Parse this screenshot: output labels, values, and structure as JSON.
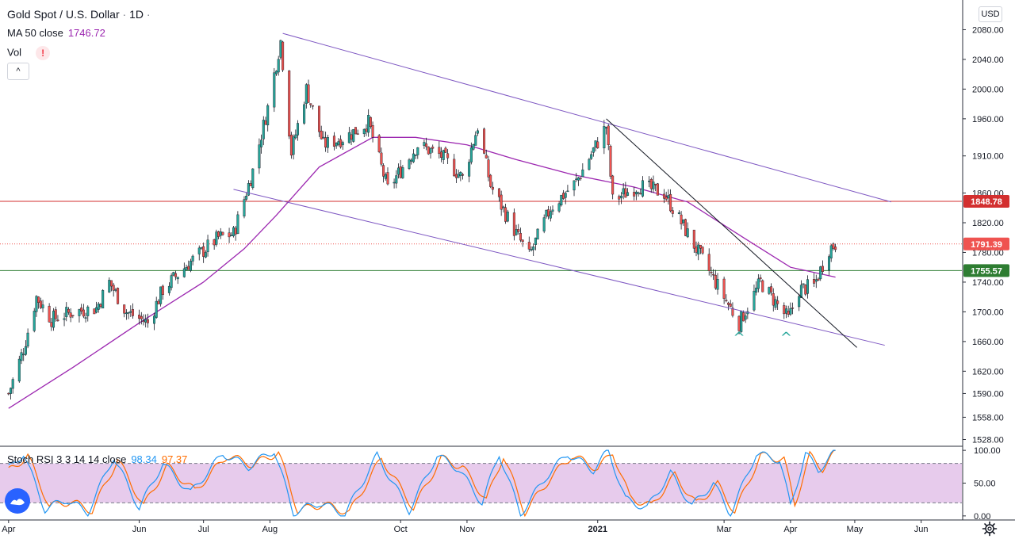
{
  "header": {
    "symbol_title": "Gold Spot / U.S. Dollar",
    "interval": "1D",
    "ma_label": "MA 50 close",
    "ma_value": "1746.72",
    "vol_label": "Vol",
    "warning_symbol": "!",
    "collapse_symbol": "^",
    "currency": "USD"
  },
  "stoch": {
    "label": "Stoch RSI 3 3 14 14 close",
    "k_value": "98.34",
    "d_value": "97.37"
  },
  "colors": {
    "up": "#26a69a",
    "down": "#ef5350",
    "ma": "#9c27b0",
    "channel": "#7e57c2",
    "k_line": "#2196f3",
    "d_line": "#ff6d00",
    "stoch_band": "#e1bee7",
    "resistance": "#d32f2f",
    "support": "#2e7d32",
    "price_dotted": "#ef5350"
  },
  "chart_data": {
    "type": "candlestick",
    "ylim": [
      1520,
      2120
    ],
    "y_ticks": [
      "2080.00",
      "2040.00",
      "2000.00",
      "1960.00",
      "1910.00",
      "1860.00",
      "1820.00",
      "1780.00",
      "1740.00",
      "1700.00",
      "1660.00",
      "1620.00",
      "1590.00",
      "1558.00",
      "1528.00"
    ],
    "y_ticks_num": [
      2080,
      2040,
      2000,
      1960,
      1910,
      1860,
      1820,
      1780,
      1740,
      1700,
      1660,
      1620,
      1590,
      1558,
      1528
    ],
    "x_range": [
      "2020-03-28",
      "2021-06-20"
    ],
    "x_labels": [
      {
        "label": "Apr",
        "date": "2020-04-01"
      },
      {
        "label": "Jun",
        "date": "2020-06-01"
      },
      {
        "label": "Jul",
        "date": "2020-07-01"
      },
      {
        "label": "Aug",
        "date": "2020-08-01"
      },
      {
        "label": "Oct",
        "date": "2020-10-01"
      },
      {
        "label": "Nov",
        "date": "2020-11-01"
      },
      {
        "label": "2021",
        "date": "2021-01-01"
      },
      {
        "label": "Mar",
        "date": "2021-03-01"
      },
      {
        "label": "Apr",
        "date": "2021-04-01"
      },
      {
        "label": "May",
        "date": "2021-05-01"
      },
      {
        "label": "Jun",
        "date": "2021-06-01"
      }
    ],
    "close_path": [
      [
        "2020-04-01",
        1590
      ],
      [
        "2020-04-08",
        1650
      ],
      [
        "2020-04-14",
        1720
      ],
      [
        "2020-04-21",
        1690
      ],
      [
        "2020-05-01",
        1700
      ],
      [
        "2020-05-12",
        1705
      ],
      [
        "2020-05-18",
        1740
      ],
      [
        "2020-05-26",
        1700
      ],
      [
        "2020-06-05",
        1685
      ],
      [
        "2020-06-12",
        1730
      ],
      [
        "2020-06-24",
        1765
      ],
      [
        "2020-07-08",
        1800
      ],
      [
        "2020-07-15",
        1805
      ],
      [
        "2020-07-24",
        1890
      ],
      [
        "2020-07-31",
        1975
      ],
      [
        "2020-08-06",
        2065
      ],
      [
        "2020-08-11",
        1915
      ],
      [
        "2020-08-18",
        2000
      ],
      [
        "2020-08-26",
        1925
      ],
      [
        "2020-09-05",
        1935
      ],
      [
        "2020-09-16",
        1955
      ],
      [
        "2020-09-25",
        1865
      ],
      [
        "2020-10-09",
        1925
      ],
      [
        "2020-10-20",
        1910
      ],
      [
        "2020-10-30",
        1880
      ],
      [
        "2020-11-06",
        1950
      ],
      [
        "2020-11-12",
        1870
      ],
      [
        "2020-11-24",
        1805
      ],
      [
        "2020-11-30",
        1775
      ],
      [
        "2020-12-10",
        1840
      ],
      [
        "2020-12-22",
        1875
      ],
      [
        "2021-01-05",
        1950
      ],
      [
        "2021-01-08",
        1850
      ],
      [
        "2021-01-20",
        1870
      ],
      [
        "2021-02-01",
        1860
      ],
      [
        "2021-02-17",
        1780
      ],
      [
        "2021-03-01",
        1720
      ],
      [
        "2021-03-08",
        1685
      ],
      [
        "2021-03-18",
        1740
      ],
      [
        "2021-03-31",
        1690
      ],
      [
        "2021-04-05",
        1730
      ],
      [
        "2021-04-12",
        1735
      ],
      [
        "2021-04-19",
        1785
      ],
      [
        "2021-04-22",
        1791.39
      ]
    ],
    "ma50": [
      [
        "2020-04-01",
        1570
      ],
      [
        "2020-05-01",
        1625
      ],
      [
        "2020-06-01",
        1685
      ],
      [
        "2020-07-01",
        1740
      ],
      [
        "2020-07-20",
        1785
      ],
      [
        "2020-08-04",
        1830
      ],
      [
        "2020-08-24",
        1895
      ],
      [
        "2020-09-18",
        1935
      ],
      [
        "2020-10-08",
        1935
      ],
      [
        "2020-11-01",
        1925
      ],
      [
        "2020-11-24",
        1905
      ],
      [
        "2020-12-20",
        1885
      ],
      [
        "2021-01-18",
        1868
      ],
      [
        "2021-02-12",
        1848
      ],
      [
        "2021-03-10",
        1800
      ],
      [
        "2021-04-01",
        1760
      ],
      [
        "2021-04-22",
        1746.72
      ]
    ],
    "channel_upper": [
      [
        "2020-08-07",
        2075
      ],
      [
        "2021-05-18",
        1848
      ]
    ],
    "channel_lower": [
      [
        "2020-07-15",
        1865
      ],
      [
        "2021-05-15",
        1655
      ]
    ],
    "trendline": [
      [
        "2021-01-05",
        1960
      ],
      [
        "2021-05-02",
        1652
      ]
    ],
    "hlines": [
      {
        "label": "1848.78",
        "value": 1848.78,
        "style": "resistance"
      },
      {
        "label": "1791.39",
        "value": 1791.39,
        "style": "price"
      },
      {
        "label": "1755.57",
        "value": 1755.57,
        "style": "support"
      }
    ],
    "markers": [
      {
        "symbol": "^",
        "date": "2021-03-08",
        "value": 1672
      },
      {
        "symbol": "^",
        "date": "2021-03-30",
        "value": 1672
      }
    ],
    "stoch_rsi": {
      "ylim": [
        -5,
        105
      ],
      "ticks": [
        "100.00",
        "50.00",
        "0.00"
      ],
      "ticks_num": [
        100,
        50,
        0
      ],
      "bands": [
        20,
        80
      ],
      "k_path": [
        [
          "2020-04-01",
          72
        ],
        [
          "2020-04-08",
          95
        ],
        [
          "2020-04-18",
          10
        ],
        [
          "2020-04-28",
          25
        ],
        [
          "2020-05-08",
          5
        ],
        [
          "2020-05-20",
          90
        ],
        [
          "2020-06-01",
          12
        ],
        [
          "2020-06-12",
          80
        ],
        [
          "2020-06-25",
          35
        ],
        [
          "2020-07-10",
          95
        ],
        [
          "2020-07-22",
          75
        ],
        [
          "2020-08-03",
          100
        ],
        [
          "2020-08-12",
          5
        ],
        [
          "2020-08-24",
          20
        ],
        [
          "2020-09-05",
          3
        ],
        [
          "2020-09-20",
          92
        ],
        [
          "2020-10-05",
          8
        ],
        [
          "2020-10-18",
          92
        ],
        [
          "2020-10-28",
          72
        ],
        [
          "2020-11-08",
          20
        ],
        [
          "2020-11-16",
          95
        ],
        [
          "2020-11-26",
          3
        ],
        [
          "2020-12-08",
          60
        ],
        [
          "2020-12-18",
          95
        ],
        [
          "2020-12-30",
          70
        ],
        [
          "2021-01-06",
          100
        ],
        [
          "2021-01-14",
          25
        ],
        [
          "2021-01-24",
          12
        ],
        [
          "2021-02-04",
          65
        ],
        [
          "2021-02-14",
          15
        ],
        [
          "2021-02-24",
          50
        ],
        [
          "2021-03-04",
          3
        ],
        [
          "2021-03-16",
          95
        ],
        [
          "2021-03-27",
          85
        ],
        [
          "2021-04-01",
          15
        ],
        [
          "2021-04-08",
          95
        ],
        [
          "2021-04-14",
          70
        ],
        [
          "2021-04-22",
          98.34
        ]
      ],
      "d_path": [
        [
          "2020-04-01",
          68
        ],
        [
          "2020-04-10",
          92
        ],
        [
          "2020-04-20",
          15
        ],
        [
          "2020-04-30",
          22
        ],
        [
          "2020-05-10",
          8
        ],
        [
          "2020-05-22",
          86
        ],
        [
          "2020-06-03",
          15
        ],
        [
          "2020-06-14",
          76
        ],
        [
          "2020-06-27",
          38
        ],
        [
          "2020-07-12",
          92
        ],
        [
          "2020-07-24",
          78
        ],
        [
          "2020-08-05",
          97
        ],
        [
          "2020-08-14",
          8
        ],
        [
          "2020-08-26",
          18
        ],
        [
          "2020-09-07",
          5
        ],
        [
          "2020-09-22",
          88
        ],
        [
          "2020-10-07",
          12
        ],
        [
          "2020-10-20",
          88
        ],
        [
          "2020-10-30",
          74
        ],
        [
          "2020-11-10",
          24
        ],
        [
          "2020-11-18",
          92
        ],
        [
          "2020-11-28",
          6
        ],
        [
          "2020-12-10",
          58
        ],
        [
          "2020-12-20",
          92
        ],
        [
          "2021-01-01",
          72
        ],
        [
          "2021-01-08",
          97
        ],
        [
          "2021-01-16",
          28
        ],
        [
          "2021-01-26",
          15
        ],
        [
          "2021-02-06",
          62
        ],
        [
          "2021-02-16",
          18
        ],
        [
          "2021-02-26",
          48
        ],
        [
          "2021-03-06",
          6
        ],
        [
          "2021-03-18",
          92
        ],
        [
          "2021-03-29",
          86
        ],
        [
          "2021-04-03",
          18
        ],
        [
          "2021-04-10",
          92
        ],
        [
          "2021-04-16",
          72
        ],
        [
          "2021-04-22",
          97.37
        ]
      ]
    }
  }
}
